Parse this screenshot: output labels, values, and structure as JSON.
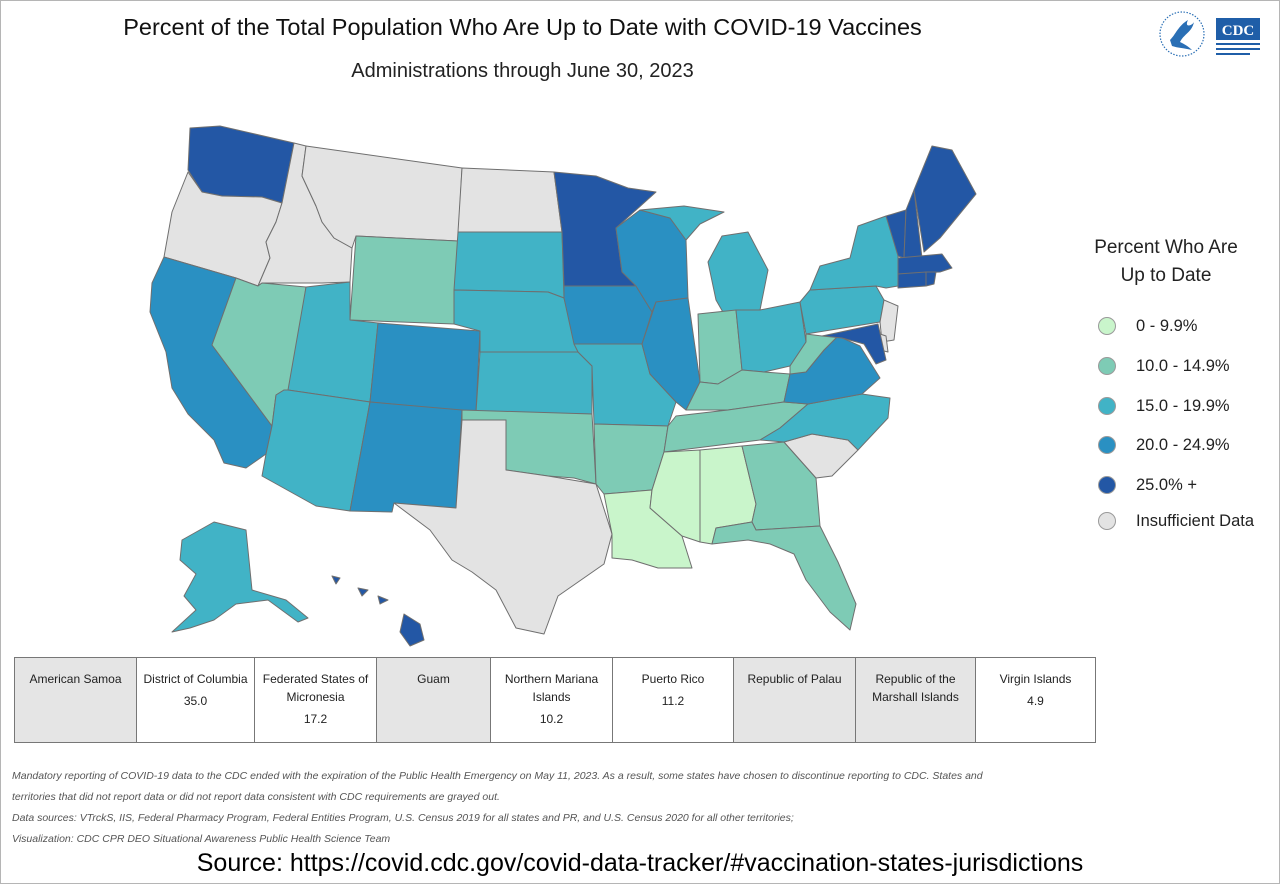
{
  "title": "Percent of the Total Population Who Are Up to Date with COVID-19 Vaccines",
  "subtitle": "Administrations through June 30, 2023",
  "logo": {
    "agency_text": "CDC",
    "icon": "hhs-eagle-icon"
  },
  "colors": {
    "band_0_10": "#c9f5cb",
    "band_10_15": "#7ecbb5",
    "band_15_20": "#41b3c6",
    "band_20_25": "#2a90c2",
    "band_25_plus": "#2357a5",
    "insufficient": "#e3e3e3",
    "state_border": "#6f6f6f"
  },
  "legend": {
    "title_line1": "Percent Who Are",
    "title_line2": "Up to Date",
    "items": [
      {
        "label": "0 - 9.9%",
        "color": "#c9f5cb"
      },
      {
        "label": "10.0 - 14.9%",
        "color": "#7ecbb5"
      },
      {
        "label": "15.0 - 19.9%",
        "color": "#41b3c6"
      },
      {
        "label": "20.0 - 24.9%",
        "color": "#2a90c2"
      },
      {
        "label": "25.0% +",
        "color": "#2357a5"
      },
      {
        "label": "Insufficient Data",
        "color": "#e3e3e3"
      }
    ]
  },
  "states": {
    "WA": "25.0% +",
    "OR": "Insufficient Data",
    "CA": "20.0 - 24.9%",
    "ID": "Insufficient Data",
    "NV": "10.0 - 14.9%",
    "MT": "Insufficient Data",
    "WY": "10.0 - 14.9%",
    "UT": "15.0 - 19.9%",
    "AZ": "15.0 - 19.9%",
    "CO": "20.0 - 24.9%",
    "NM": "20.0 - 24.9%",
    "ND": "Insufficient Data",
    "SD": "15.0 - 19.9%",
    "NE": "15.0 - 19.9%",
    "KS": "15.0 - 19.9%",
    "OK": "10.0 - 14.9%",
    "TX": "Insufficient Data",
    "MN": "25.0% +",
    "IA": "20.0 - 24.9%",
    "MO": "15.0 - 19.9%",
    "AR": "10.0 - 14.9%",
    "LA": "0 - 9.9%",
    "WI": "20.0 - 24.9%",
    "IL": "20.0 - 24.9%",
    "MI": "15.0 - 19.9%",
    "IN": "10.0 - 14.9%",
    "OH": "15.0 - 19.9%",
    "KY": "10.0 - 14.9%",
    "TN": "10.0 - 14.9%",
    "MS": "0 - 9.9%",
    "AL": "0 - 9.9%",
    "GA": "10.0 - 14.9%",
    "FL": "10.0 - 14.9%",
    "SC": "Insufficient Data",
    "NC": "15.0 - 19.9%",
    "VA": "20.0 - 24.9%",
    "WV": "10.0 - 14.9%",
    "PA": "15.0 - 19.9%",
    "NY": "15.0 - 19.9%",
    "NJ": "Insufficient Data",
    "DE": "Insufficient Data",
    "MD": "25.0% +",
    "VT": "25.0% +",
    "NH": "25.0% +",
    "ME": "25.0% +",
    "MA": "25.0% +",
    "CT": "25.0% +",
    "RI": "25.0% +",
    "AK": "15.0 - 19.9%",
    "HI": "25.0% +"
  },
  "territories": [
    {
      "name": "American Samoa",
      "value": ""
    },
    {
      "name": "District of Columbia",
      "value": "35.0"
    },
    {
      "name": "Federated States of Micronesia",
      "value": "17.2"
    },
    {
      "name": "Guam",
      "value": ""
    },
    {
      "name": "Northern Mariana Islands",
      "value": "10.2"
    },
    {
      "name": "Puerto Rico",
      "value": "11.2"
    },
    {
      "name": "Republic of Palau",
      "value": ""
    },
    {
      "name": "Republic of the Marshall Islands",
      "value": ""
    },
    {
      "name": "Virgin Islands",
      "value": "4.9"
    }
  ],
  "notes": [
    "Mandatory reporting of COVID-19 data to the CDC ended with the expiration of the Public Health Emergency on May 11, 2023. As a result, some states have chosen to discontinue reporting to CDC. States and",
    "territories that did not report data or did not report data consistent with CDC requirements are grayed out.",
    "Data sources: VTrckS, IIS, Federal Pharmacy Program, Federal Entities Program, U.S. Census 2019 for all states and PR, and U.S. Census 2020 for all other territories;",
    "Visualization: CDC CPR DEO Situational Awareness Public Health Science Team"
  ],
  "source": "Source: https://covid.cdc.gov/covid-data-tracker/#vaccination-states-jurisdictions"
}
